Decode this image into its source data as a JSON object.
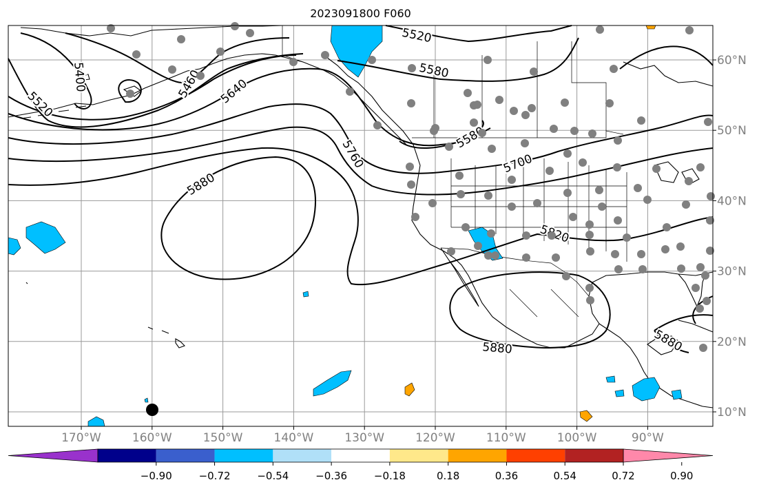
{
  "title": "2023091800 F060",
  "lon_labels": [
    "170°W",
    "160°W",
    "150°W",
    "140°W",
    "130°W",
    "120°W",
    "110°W",
    "100°W",
    "90°W"
  ],
  "lon_values": [
    -170,
    -160,
    -150,
    -140,
    -130,
    -120,
    -110,
    -100,
    -90
  ],
  "lat_labels": [
    "60°N",
    "50°N",
    "40°N",
    "30°N",
    "20°N",
    "10°N"
  ],
  "lat_values": [
    60,
    50,
    40,
    30,
    20,
    10
  ],
  "contour_labels": [
    {
      "text": "5520"
    },
    {
      "text": "5580"
    },
    {
      "text": "5400"
    },
    {
      "text": "5520"
    },
    {
      "text": "5460"
    },
    {
      "text": "5640"
    },
    {
      "text": "5580"
    },
    {
      "text": "5760"
    },
    {
      "text": "5700"
    },
    {
      "text": "5880"
    },
    {
      "text": "5820"
    },
    {
      "text": "5880"
    },
    {
      "text": "5880"
    }
  ],
  "colorbar": {
    "tick_labels": [
      "−0.90",
      "−0.72",
      "−0.54",
      "−0.36",
      "−0.18",
      "0.18",
      "0.36",
      "0.54",
      "0.72",
      "0.90"
    ],
    "colors": [
      "#9932CC",
      "#00008B",
      "#3A5FCD",
      "#00BFFF",
      "#B0E0F8",
      "#FFFFFF",
      "#FFE88A",
      "#FFA500",
      "#FF4000",
      "#B22222",
      "#FF88AA"
    ],
    "under_color": "#9932CC",
    "over_color": "#FF88AA"
  },
  "colors": {
    "land_edge": "#000000",
    "grid": "#999999",
    "station": "#808080",
    "negative_fill": "#00BFFF",
    "positive_fill": "#FFA500",
    "tick_label": "#808080"
  }
}
